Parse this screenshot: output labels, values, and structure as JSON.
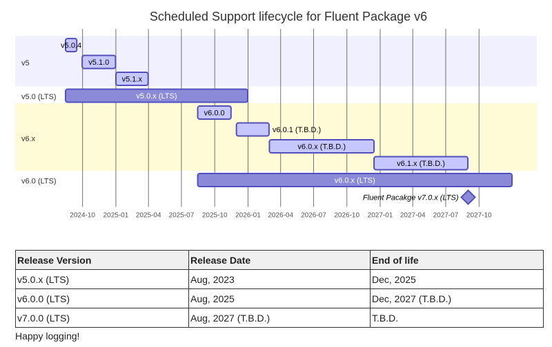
{
  "chart_data": {
    "type": "gantt",
    "title": "Scheduled Support lifecycle for Fluent Package v6",
    "x_ticks": [
      "2024-10",
      "2025-01",
      "2025-04",
      "2025-07",
      "2025-10",
      "2026-01",
      "2026-04",
      "2026-07",
      "2026-10",
      "2027-01",
      "2027-04",
      "2027-07",
      "2027-10"
    ],
    "x_range": [
      "2024-08-15",
      "2027-12-31"
    ],
    "sections": [
      {
        "name": "v5",
        "color": "#f0f0fe",
        "tasks": [
          {
            "label": "v5.0.4",
            "start": "2024-08-15",
            "end": "2024-09-15",
            "label_inside": true
          },
          {
            "label": "v5.1.0",
            "start": "2024-09-30",
            "end": "2024-12-31",
            "label_inside": true
          },
          {
            "label": "v5.1.x",
            "start": "2025-01-01",
            "end": "2025-03-31",
            "label_inside": true
          }
        ]
      },
      {
        "name": "v5.0 (LTS)",
        "color": "#ffffff",
        "tasks": [
          {
            "label": "v5.0.x (LTS)",
            "start": "2024-08-15",
            "end": "2025-12-31",
            "label_inside": true,
            "lts": true
          }
        ]
      },
      {
        "name": "v6.x",
        "color": "#fffbd6",
        "tasks": [
          {
            "label": "v6.0.0",
            "start": "2025-08-15",
            "end": "2025-11-15",
            "label_inside": true
          },
          {
            "label": "v6.0.1 (T.B.D.)",
            "start": "2025-11-30",
            "end": "2026-02-28",
            "label_inside": false
          },
          {
            "label": "v6.0.x (T.B.D.)",
            "start": "2026-03-01",
            "end": "2026-12-15",
            "label_inside": true
          },
          {
            "label": "v6.1.x (T.B.D.)",
            "start": "2026-12-15",
            "end": "2027-08-31",
            "label_inside": true
          }
        ]
      },
      {
        "name": "v6.0 (LTS)",
        "color": "#ffffff",
        "tasks": [
          {
            "label": "v6.0.x (LTS)",
            "start": "2025-08-15",
            "end": "2027-12-31",
            "label_inside": true,
            "lts": true
          }
        ]
      }
    ],
    "milestones": [
      {
        "label": "Fluent Pacakge v7.0.x (LTS)",
        "date": "2027-09-01"
      }
    ],
    "colors": {
      "task": "#c6c7ff",
      "task_border": "#534fbc",
      "lts": "#8a8ad8",
      "grid": "#444444"
    }
  },
  "table": {
    "headers": [
      "Release Version",
      "Release Date",
      "End of life"
    ],
    "rows": [
      [
        "v5.0.x (LTS)",
        "Aug, 2023",
        "Dec, 2025"
      ],
      [
        "v6.0.0 (LTS)",
        "Aug, 2025",
        "Dec, 2027 (T.B.D.)"
      ],
      [
        "v7.0.0 (LTS)",
        "Aug, 2027 (T.B.D.)",
        "T.B.D."
      ]
    ]
  },
  "footer": "Happy logging!"
}
